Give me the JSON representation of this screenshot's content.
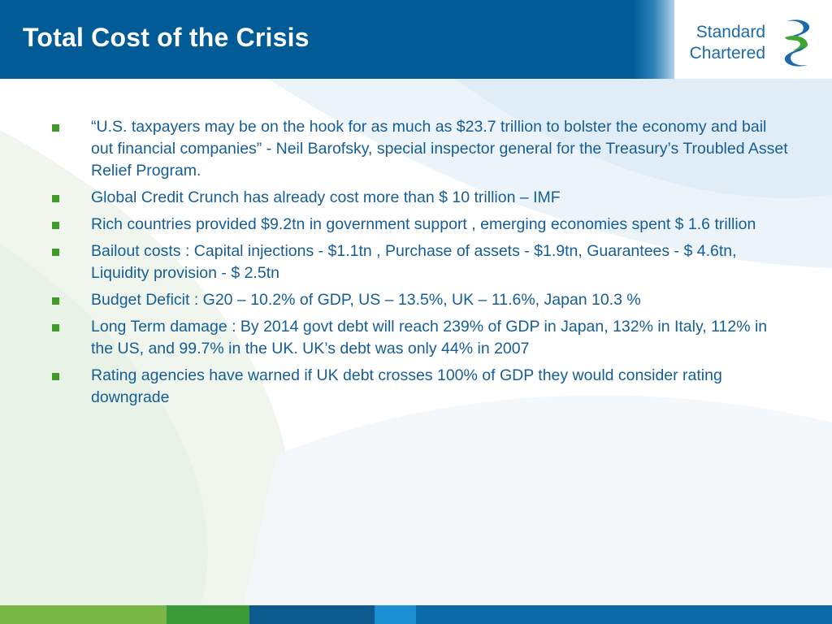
{
  "slide": {
    "title": "Total Cost of the Crisis"
  },
  "logo": {
    "line1": "Standard",
    "line2": "Chartered",
    "mark_icon": "standard-chartered-swoosh-icon",
    "colors": {
      "blue": "#1d6aa8",
      "green": "#3fa535"
    }
  },
  "bullets": [
    "“U.S. taxpayers may be on the hook for as much as $23.7 trillion to bolster the economy and bail out financial companies” - Neil Barofsky, special inspector general for the Treasury’s Troubled Asset Relief Program.",
    "Global Credit Crunch has already cost more than $ 10 trillion – IMF",
    "Rich countries provided $9.2tn in government support , emerging economies spent $ 1.6 trillion",
    "Bailout costs : Capital injections - $1.1tn , Purchase of assets - $1.9tn, Guarantees - $ 4.6tn,  Liquidity provision - $ 2.5tn",
    "Budget Deficit : G20 – 10.2% of GDP, US – 13.5%, UK – 11.6%, Japan 10.3 %",
    "Long Term damage : By 2014 govt debt will reach 239% of GDP in Japan, 132% in Italy, 112% in the US, and 99.7% in the UK. UK’s debt was only 44% in 2007",
    "Rating agencies have warned if UK debt crosses 100% of GDP they would consider rating downgrade"
  ],
  "theme": {
    "header_blue": "#005b96",
    "text_blue": "#155e96",
    "bullet_green": "#3f9a2a",
    "footer_colors": [
      "#7ab648",
      "#3a9a35",
      "#0d5a8e",
      "#1b8fd2",
      "#0a6aa8"
    ]
  }
}
